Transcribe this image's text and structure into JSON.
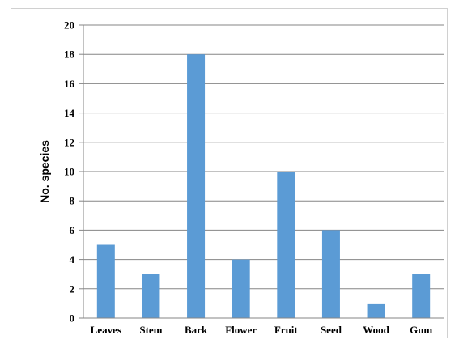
{
  "chart_data": {
    "type": "bar",
    "categories": [
      "Leaves",
      "Stem",
      "Bark",
      "Flower",
      "Fruit",
      "Seed",
      "Wood",
      "Gum"
    ],
    "values": [
      5,
      3,
      18,
      4,
      10,
      6,
      1,
      3
    ],
    "title": "",
    "xlabel": "",
    "ylabel": "No. species",
    "ylim": [
      0,
      20
    ],
    "yticks": [
      0,
      2,
      4,
      6,
      8,
      10,
      12,
      14,
      16,
      18,
      20
    ],
    "grid": true,
    "legend": "none",
    "bar_color": "#5b9bd5",
    "grid_color": "#868686"
  }
}
